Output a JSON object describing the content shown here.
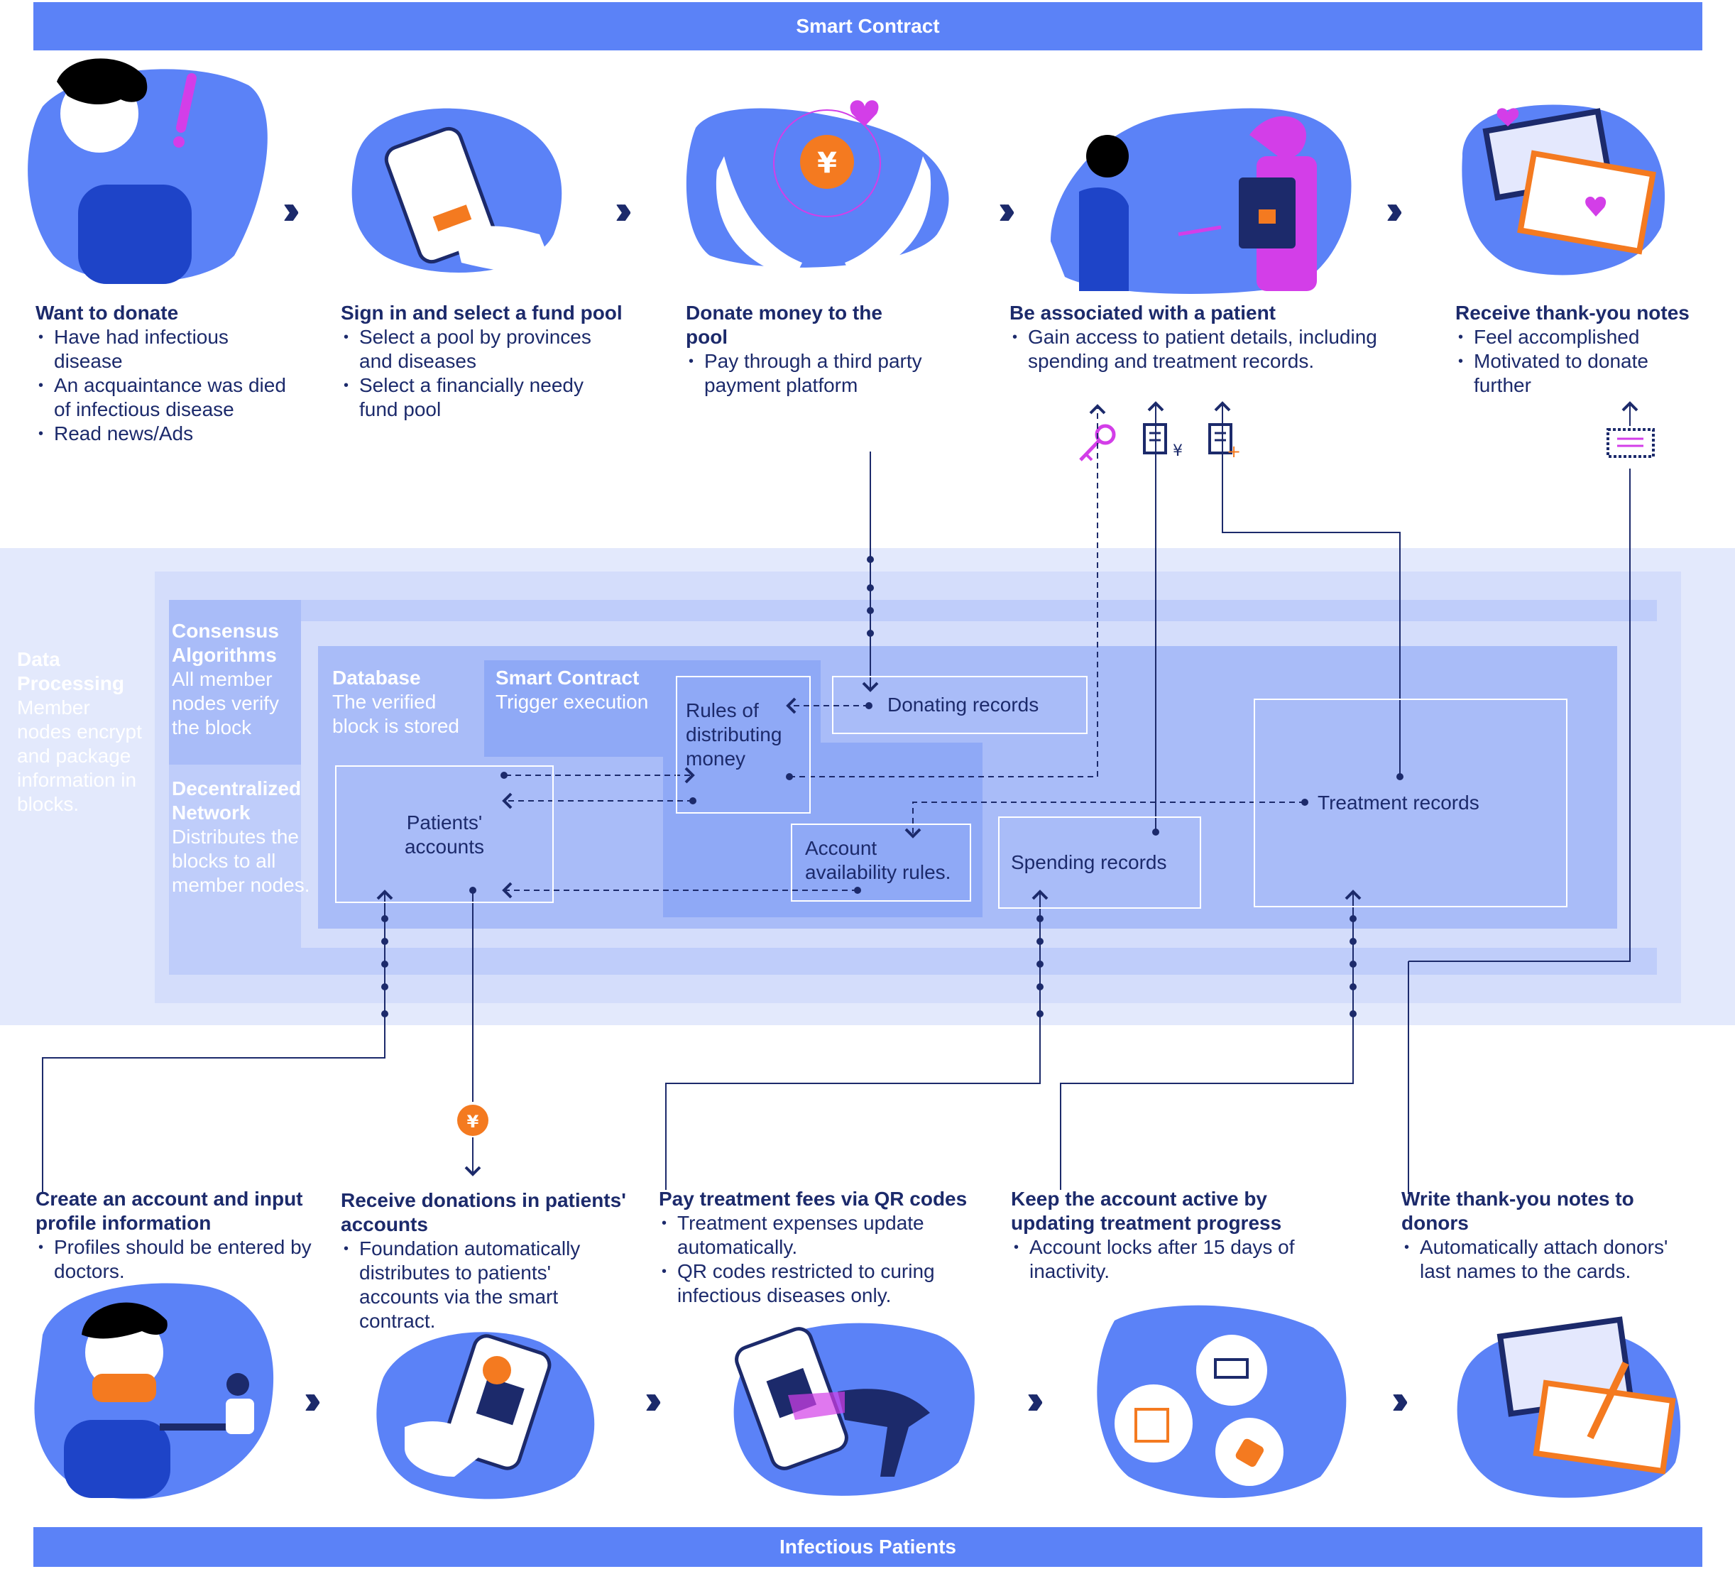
{
  "header": {
    "title": "Smart Contract"
  },
  "footer": {
    "title": "Infectious Patients"
  },
  "top_steps": [
    {
      "title": "Want to donate",
      "bullets": [
        "Have had infectious disease",
        "An acquaintance was died of infectious disease",
        "Read news/Ads"
      ]
    },
    {
      "title": "Sign in and select a fund pool",
      "bullets": [
        "Select a pool by provinces and diseases",
        "Select a  financially needy fund pool"
      ]
    },
    {
      "title": "Donate money to the pool",
      "bullets": [
        "Pay through a third party payment platform"
      ]
    },
    {
      "title": "Be associated with a patient",
      "bullets": [
        "Gain access to patient details, including spending and treatment records."
      ]
    },
    {
      "title": "Receive thank-you notes",
      "bullets": [
        "Feel accomplished",
        "Motivated to donate further"
      ]
    }
  ],
  "bottom_steps": [
    {
      "title": "Create an account and input profile information",
      "bullets": [
        "Profiles should be entered by doctors."
      ]
    },
    {
      "title": "Receive donations in patients' accounts",
      "bullets": [
        "Foundation automatically distributes to patients' accounts via the smart contract."
      ]
    },
    {
      "title": "Pay treatment fees via QR codes",
      "bullets": [
        "Treatment expenses update automatically.",
        "QR codes restricted to curing infectious diseases only."
      ]
    },
    {
      "title": "Keep the account active by updating treatment progress",
      "bullets": [
        "Account locks after 15 days of inactivity."
      ]
    },
    {
      "title": "Write thank-you notes to donors",
      "bullets": [
        "Automatically attach donors' last names to the cards."
      ]
    }
  ],
  "layers": {
    "data_processing": {
      "title": "Data Processing",
      "desc": "Member nodes encrypt and package information in blocks."
    },
    "consensus": {
      "title": "Consensus Algorithms",
      "desc": "All member nodes verify the block"
    },
    "decentralized": {
      "title": "Decentralized Network",
      "desc": "Distributes the blocks to all member nodes."
    },
    "database": {
      "title": "Database",
      "desc": "The verified block is stored"
    },
    "smart_contract": {
      "title": "Smart Contract",
      "desc": "Trigger execution"
    }
  },
  "boxes": {
    "donating_records": "Donating records",
    "rules": "Rules of distributing money",
    "patients_accounts": "Patients' accounts",
    "account_rules": "Account availability rules.",
    "spending_records": "Spending records",
    "treatment_records": "Treatment records"
  },
  "colors": {
    "primary": "#5b82f7",
    "navy": "#1c2a6b",
    "accent_orange": "#f47a20",
    "accent_magenta": "#d33ee8"
  }
}
